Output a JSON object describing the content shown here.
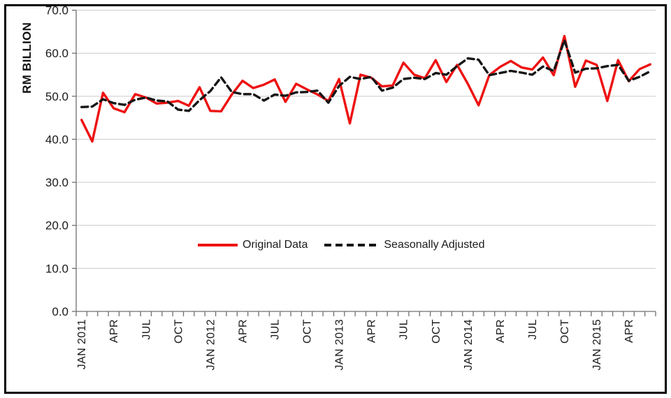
{
  "chart": {
    "y_axis_title": "RM BILLION"
  },
  "chart_data": {
    "type": "line",
    "title": "",
    "xlabel": "",
    "ylabel": "RM BILLION",
    "ylim": [
      0,
      70
    ],
    "ytick_step": 10,
    "y_tick_labels": [
      "0.0",
      "10.0",
      "20.0",
      "30.0",
      "40.0",
      "50.0",
      "60.0",
      "70.0"
    ],
    "grid": true,
    "legend_position": "inside-plot-center",
    "x_tick_label_every": 3,
    "categories": [
      "JAN 2011",
      "FEB 2011",
      "MAR 2011",
      "APR 2011",
      "MAY 2011",
      "JUN 2011",
      "JUL 2011",
      "AUG 2011",
      "SEP 2011",
      "OCT 2011",
      "NOV 2011",
      "DEC 2011",
      "JAN 2012",
      "FEB 2012",
      "MAR 2012",
      "APR 2012",
      "MAY 2012",
      "JUN 2012",
      "JUL 2012",
      "AUG 2012",
      "SEP 2012",
      "OCT 2012",
      "NOV 2012",
      "DEC 2012",
      "JAN 2013",
      "FEB 2013",
      "MAR 2013",
      "APR 2013",
      "MAY 2013",
      "JUN 2013",
      "JUL 2013",
      "AUG 2013",
      "SEP 2013",
      "OCT 2013",
      "NOV 2013",
      "DEC 2013",
      "JAN 2014",
      "FEB 2014",
      "MAR 2014",
      "APR 2014",
      "MAY 2014",
      "JUN 2014",
      "JUL 2014",
      "AUG 2014",
      "SEP 2014",
      "OCT 2014",
      "NOV 2014",
      "DEC 2014",
      "JAN 2015",
      "FEB 2015",
      "MAR 2015",
      "APR 2015",
      "MAY 2015",
      "JUN 2015"
    ],
    "series": [
      {
        "name": "Original Data",
        "color": "#ee1111",
        "dash": false,
        "values": [
          44.5,
          39.5,
          50.8,
          47.2,
          46.3,
          50.5,
          49.7,
          48.3,
          48.5,
          48.9,
          47.8,
          52.1,
          46.6,
          46.5,
          50.4,
          53.6,
          51.9,
          52.7,
          53.9,
          48.7,
          52.9,
          51.6,
          50.4,
          48.9,
          54.0,
          43.7,
          55.0,
          54.3,
          52.3,
          52.5,
          57.8,
          55.0,
          54.2,
          58.4,
          53.3,
          57.3,
          52.9,
          47.9,
          54.9,
          56.8,
          58.2,
          56.7,
          56.2,
          59.0,
          54.9,
          64.0,
          52.2,
          58.3,
          57.3,
          48.9,
          58.4,
          53.5,
          56.3,
          57.4
        ]
      },
      {
        "name": "Seasonally Adjusted",
        "color": "#161616",
        "dash": true,
        "values": [
          47.5,
          47.6,
          49.3,
          48.4,
          48.0,
          49.2,
          49.7,
          49.0,
          48.8,
          46.9,
          46.6,
          49.1,
          51.2,
          54.4,
          51.0,
          50.5,
          50.5,
          49.0,
          50.4,
          50.1,
          50.9,
          51.0,
          51.3,
          48.5,
          52.4,
          54.5,
          54.0,
          54.5,
          51.3,
          52.0,
          54.0,
          54.3,
          54.0,
          55.4,
          55.0,
          57.0,
          58.8,
          58.5,
          54.9,
          55.4,
          55.9,
          55.5,
          55.0,
          56.9,
          55.9,
          63.0,
          55.5,
          56.4,
          56.5,
          57.0,
          57.3,
          53.6,
          54.5,
          55.8
        ]
      }
    ]
  }
}
